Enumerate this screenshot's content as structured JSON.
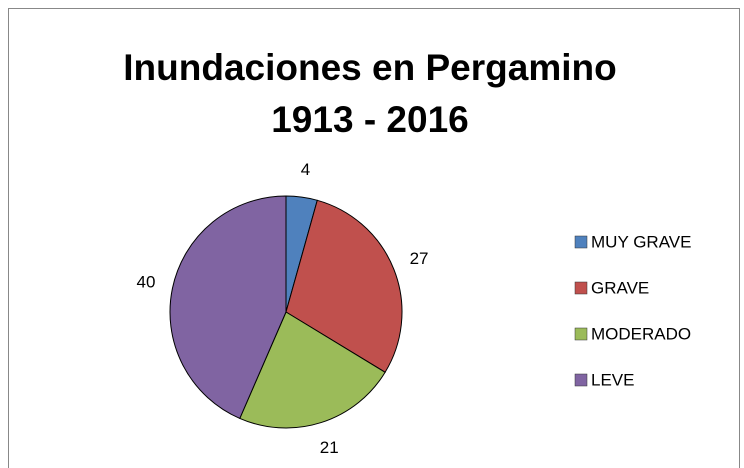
{
  "chart_data": {
    "type": "pie",
    "title": [
      "Inundaciones en Pergamino",
      "1913 - 2016"
    ],
    "categories": [
      "MUY GRAVE",
      "GRAVE",
      "MODERADO",
      "LEVE"
    ],
    "values": [
      4,
      27,
      21,
      40
    ],
    "colors": [
      "#4f81bd",
      "#c0504d",
      "#9bbb59",
      "#8064a2"
    ],
    "legend": "right"
  }
}
